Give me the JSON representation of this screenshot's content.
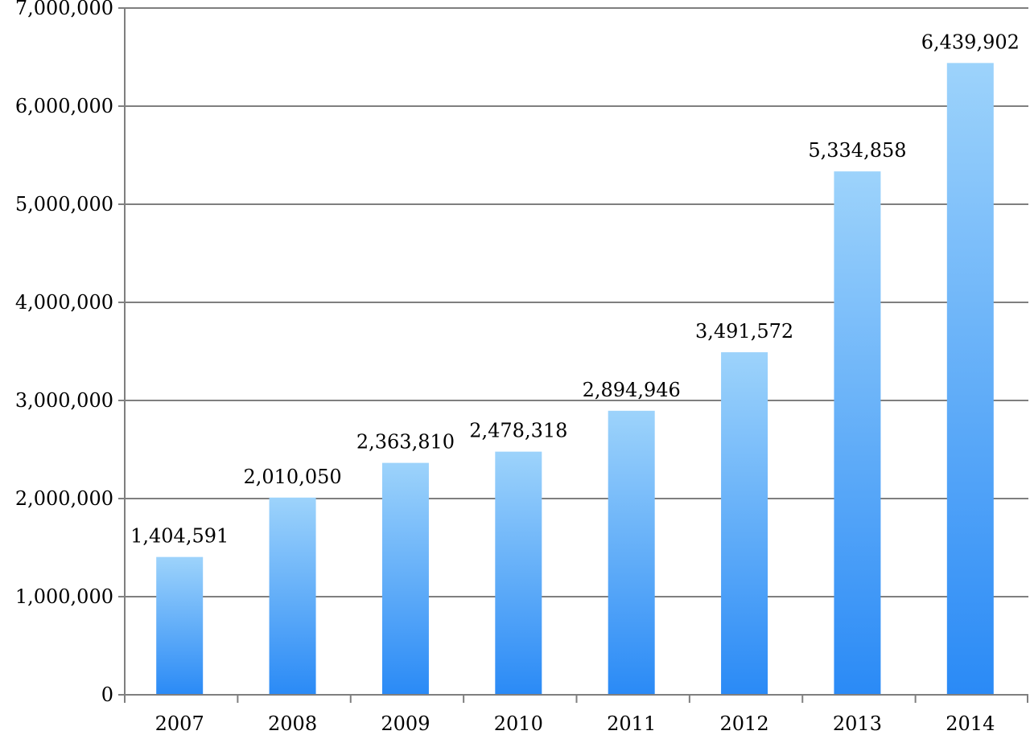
{
  "chart_data": {
    "type": "bar",
    "categories": [
      "2007",
      "2008",
      "2009",
      "2010",
      "2011",
      "2012",
      "2013",
      "2014"
    ],
    "values": [
      1404591,
      2010050,
      2363810,
      2478318,
      2894946,
      3491572,
      5334858,
      6439902
    ],
    "data_labels": [
      "1,404,591",
      "2,010,050",
      "2,363,810",
      "2,478,318",
      "2,894,946",
      "3,491,572",
      "5,334,858",
      "6,439,902"
    ],
    "y_ticks": [
      0,
      1000000,
      2000000,
      3000000,
      4000000,
      5000000,
      6000000,
      7000000
    ],
    "y_tick_labels": [
      "0",
      "1,000,000",
      "2,000,000",
      "3,000,000",
      "4,000,000",
      "5,000,000",
      "6,000,000",
      "7,000,000"
    ],
    "ylim": [
      0,
      7000000
    ],
    "title": "",
    "xlabel": "",
    "ylabel": "",
    "grid": true,
    "legend": "none",
    "colors": {
      "bar_top": "#9dd3fb",
      "bar_bottom": "#2a8af6",
      "grid": "#7f7f7f",
      "axis": "#7f7f7f"
    }
  }
}
